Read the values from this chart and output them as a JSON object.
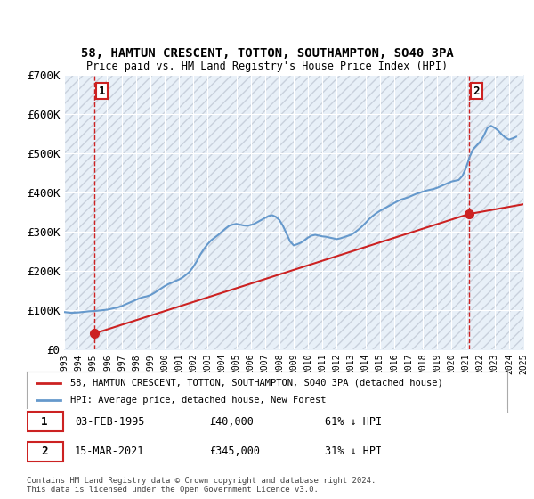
{
  "title": "58, HAMTUN CRESCENT, TOTTON, SOUTHAMPTON, SO40 3PA",
  "subtitle": "Price paid vs. HM Land Registry's House Price Index (HPI)",
  "ylabel": "",
  "ylim": [
    0,
    700000
  ],
  "yticks": [
    0,
    100000,
    200000,
    300000,
    400000,
    500000,
    600000,
    700000
  ],
  "ytick_labels": [
    "£0",
    "£100K",
    "£200K",
    "£300K",
    "£400K",
    "£500K",
    "£600K",
    "£700K"
  ],
  "background_color": "#ffffff",
  "plot_bg_color": "#e8f0f8",
  "hatch_color": "#c8d0dc",
  "grid_color": "#ffffff",
  "hpi_color": "#6699cc",
  "price_color": "#cc2222",
  "annotation1_date": "03-FEB-1995",
  "annotation1_price": "£40,000",
  "annotation1_hpi": "61% ↓ HPI",
  "annotation2_date": "15-MAR-2021",
  "annotation2_price": "£345,000",
  "annotation2_hpi": "31% ↓ HPI",
  "sale1_x": 1995.09,
  "sale1_y": 40000,
  "sale2_x": 2021.2,
  "sale2_y": 345000,
  "legend_label1": "58, HAMTUN CRESCENT, TOTTON, SOUTHAMPTON, SO40 3PA (detached house)",
  "legend_label2": "HPI: Average price, detached house, New Forest",
  "footer": "Contains HM Land Registry data © Crown copyright and database right 2024.\nThis data is licensed under the Open Government Licence v3.0.",
  "hpi_data_x": [
    1993.0,
    1993.25,
    1993.5,
    1993.75,
    1994.0,
    1994.25,
    1994.5,
    1994.75,
    1995.0,
    1995.25,
    1995.5,
    1995.75,
    1996.0,
    1996.25,
    1996.5,
    1996.75,
    1997.0,
    1997.25,
    1997.5,
    1997.75,
    1998.0,
    1998.25,
    1998.5,
    1998.75,
    1999.0,
    1999.25,
    1999.5,
    1999.75,
    2000.0,
    2000.25,
    2000.5,
    2000.75,
    2001.0,
    2001.25,
    2001.5,
    2001.75,
    2002.0,
    2002.25,
    2002.5,
    2002.75,
    2003.0,
    2003.25,
    2003.5,
    2003.75,
    2004.0,
    2004.25,
    2004.5,
    2004.75,
    2005.0,
    2005.25,
    2005.5,
    2005.75,
    2006.0,
    2006.25,
    2006.5,
    2006.75,
    2007.0,
    2007.25,
    2007.5,
    2007.75,
    2008.0,
    2008.25,
    2008.5,
    2008.75,
    2009.0,
    2009.25,
    2009.5,
    2009.75,
    2010.0,
    2010.25,
    2010.5,
    2010.75,
    2011.0,
    2011.25,
    2011.5,
    2011.75,
    2012.0,
    2012.25,
    2012.5,
    2012.75,
    2013.0,
    2013.25,
    2013.5,
    2013.75,
    2014.0,
    2014.25,
    2014.5,
    2014.75,
    2015.0,
    2015.25,
    2015.5,
    2015.75,
    2016.0,
    2016.25,
    2016.5,
    2016.75,
    2017.0,
    2017.25,
    2017.5,
    2017.75,
    2018.0,
    2018.25,
    2018.5,
    2018.75,
    2019.0,
    2019.25,
    2019.5,
    2019.75,
    2020.0,
    2020.25,
    2020.5,
    2020.75,
    2021.0,
    2021.25,
    2021.5,
    2021.75,
    2022.0,
    2022.25,
    2022.5,
    2022.75,
    2023.0,
    2023.25,
    2023.5,
    2023.75,
    2024.0,
    2024.25,
    2024.5
  ],
  "hpi_data_y": [
    95000,
    94000,
    93000,
    93500,
    94000,
    95000,
    96000,
    97000,
    97500,
    98000,
    99000,
    100000,
    101000,
    103000,
    105000,
    107000,
    110000,
    114000,
    118000,
    122000,
    126000,
    130000,
    133000,
    135000,
    138000,
    143000,
    149000,
    155000,
    161000,
    166000,
    170000,
    174000,
    178000,
    183000,
    190000,
    198000,
    210000,
    225000,
    242000,
    256000,
    268000,
    278000,
    285000,
    292000,
    300000,
    308000,
    315000,
    318000,
    320000,
    318000,
    316000,
    315000,
    317000,
    320000,
    325000,
    330000,
    335000,
    340000,
    342000,
    338000,
    330000,
    315000,
    295000,
    275000,
    265000,
    268000,
    272000,
    278000,
    285000,
    290000,
    292000,
    290000,
    288000,
    287000,
    285000,
    283000,
    281000,
    283000,
    286000,
    289000,
    292000,
    298000,
    305000,
    313000,
    322000,
    332000,
    340000,
    347000,
    353000,
    358000,
    363000,
    368000,
    373000,
    378000,
    382000,
    385000,
    388000,
    392000,
    396000,
    399000,
    402000,
    405000,
    407000,
    409000,
    412000,
    416000,
    420000,
    424000,
    428000,
    430000,
    432000,
    442000,
    462000,
    490000,
    510000,
    520000,
    530000,
    545000,
    565000,
    570000,
    565000,
    558000,
    548000,
    540000,
    535000,
    538000,
    542000
  ],
  "xmin": 1993,
  "xmax": 2025
}
